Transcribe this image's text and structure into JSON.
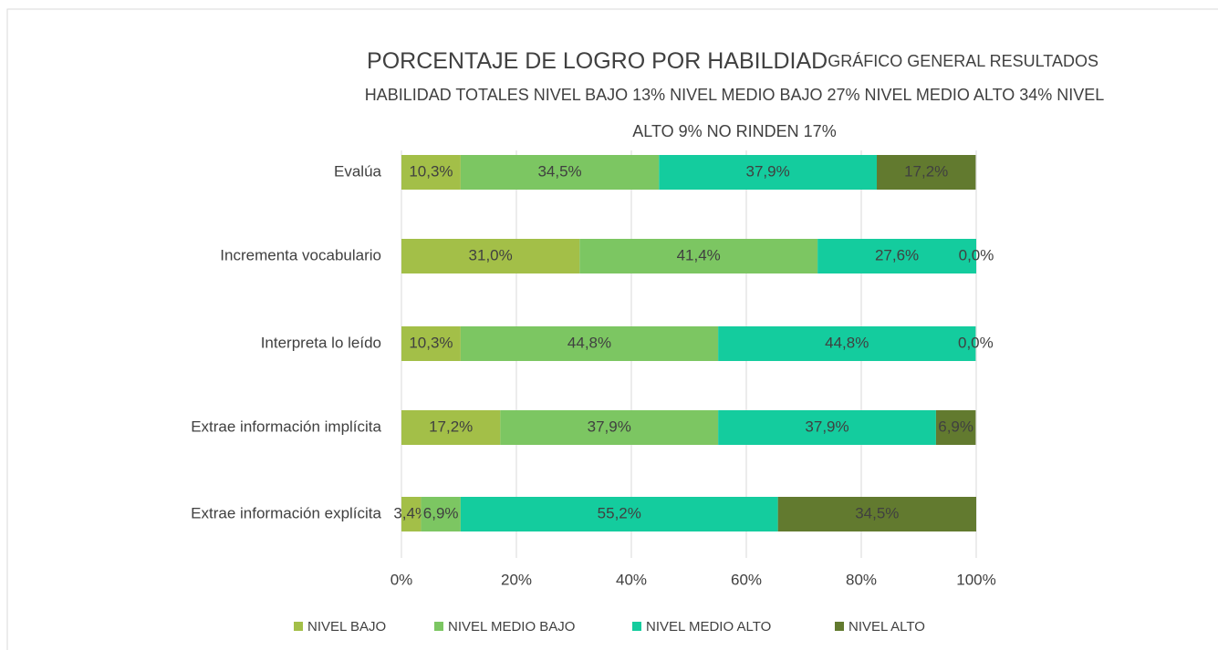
{
  "chart_data": {
    "type": "stacked_barh",
    "title": "PORCENTAJE DE LOGRO POR HABILDIAD",
    "subtitle": "GRÁFICO GENERAL RESULTADOS",
    "description": [
      "HABILIDAD TOTALES NIVEL BAJO 13% NIVEL MEDIO BAJO 27% NIVEL MEDIO ALTO 34% NIVEL",
      "ALTO 9% NO RINDEN 17%"
    ],
    "categories": [
      "Evalúa",
      "Incrementa vocabulario",
      "Interpreta lo leído",
      "Extrae información implícita",
      "Extrae información explícita"
    ],
    "series": [
      {
        "name": "NIVEL BAJO",
        "color": "#a3bf48",
        "values": [
          10.3,
          31.0,
          10.3,
          17.2,
          3.4
        ],
        "value_labels": [
          "10,3%",
          "31,0%",
          "10,3%",
          "17,2%",
          "3,4%"
        ]
      },
      {
        "name": "NIVEL MEDIO BAJO",
        "color": "#7cc662",
        "values": [
          34.5,
          41.4,
          44.8,
          37.9,
          6.9
        ],
        "value_labels": [
          "34,5%",
          "41,4%",
          "44,8%",
          "37,9%",
          "6,9%"
        ]
      },
      {
        "name": "NIVEL MEDIO ALTO",
        "color": "#14cc9e",
        "values": [
          37.9,
          27.6,
          44.8,
          37.9,
          55.2
        ],
        "value_labels": [
          "37,9%",
          "27,6%",
          "44,8%",
          "37,9%",
          "55,2%"
        ]
      },
      {
        "name": "NIVEL ALTO",
        "color": "#627a2f",
        "values": [
          17.2,
          0.0,
          0.0,
          6.9,
          34.5
        ],
        "value_labels": [
          "17,2%",
          "0,0%",
          "0,0%",
          "6,9%",
          "34,5%"
        ]
      }
    ],
    "xlim": [
      0,
      100
    ],
    "xticks": [
      {
        "value": 0,
        "label": "0%"
      },
      {
        "value": 20,
        "label": "20%"
      },
      {
        "value": 40,
        "label": "40%"
      },
      {
        "value": 60,
        "label": "60%"
      },
      {
        "value": 80,
        "label": "80%"
      },
      {
        "value": 100,
        "label": "100%"
      }
    ],
    "grid": true,
    "legend": "bottom"
  }
}
